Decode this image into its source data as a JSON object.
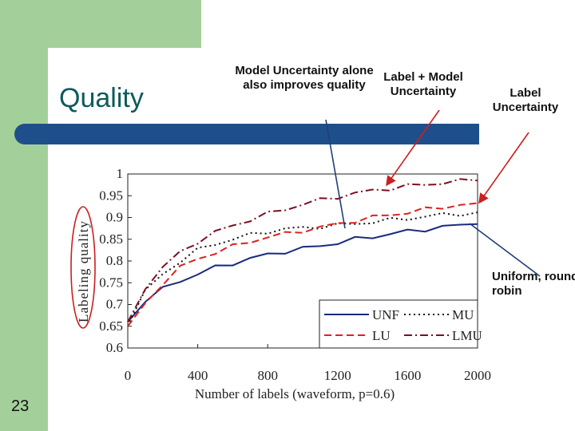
{
  "slide": {
    "title": "Quality",
    "number": "23"
  },
  "callouts": {
    "mu": "Model Uncertainty alone also improves quality",
    "lmu": "Label + Model Uncertainty",
    "lu": "Label Uncertainty",
    "unf": "Uniform, round robin"
  },
  "colors": {
    "slide_green": "#a3d09a",
    "title_bar": "#1f4f8a",
    "title_text": "#0d5a5a",
    "arrow_red": "#cc1f1f",
    "arrow_blue": "#1f3f7a",
    "ylabel_circle": "#cc1f1f",
    "series_unf": "#1a2a80",
    "series_mu": "#111111",
    "series_lu": "#e02020",
    "series_lmu": "#7a1020"
  },
  "chart_data": {
    "type": "line",
    "xlabel": "Number of labels (waveform, p=0.6)",
    "ylabel": "Labeling quality",
    "xlim": [
      0,
      2000
    ],
    "ylim": [
      0.6,
      1
    ],
    "xticks": [
      "0",
      "400",
      "800",
      "1200",
      "1600",
      "2000"
    ],
    "yticks": [
      "0.6",
      "0.65",
      "0.7",
      "0.75",
      "0.8",
      "0.85",
      "0.9",
      "0.95",
      "1"
    ],
    "grid": false,
    "legend": "bottom-right",
    "x": [
      0,
      100,
      200,
      300,
      400,
      500,
      600,
      700,
      800,
      900,
      1000,
      1100,
      1200,
      1300,
      1400,
      1500,
      1600,
      1700,
      1800,
      1900,
      2000
    ],
    "series": [
      {
        "name": "UNF",
        "style": "solid",
        "values": [
          0.66,
          0.71,
          0.735,
          0.755,
          0.77,
          0.785,
          0.795,
          0.805,
          0.815,
          0.822,
          0.828,
          0.835,
          0.842,
          0.85,
          0.856,
          0.862,
          0.868,
          0.873,
          0.878,
          0.882,
          0.885
        ]
      },
      {
        "name": "MU",
        "style": "dotted",
        "values": [
          0.65,
          0.73,
          0.77,
          0.8,
          0.825,
          0.84,
          0.85,
          0.86,
          0.868,
          0.873,
          0.876,
          0.879,
          0.882,
          0.886,
          0.89,
          0.894,
          0.898,
          0.902,
          0.906,
          0.909,
          0.912
        ]
      },
      {
        "name": "LU",
        "style": "dashed",
        "values": [
          0.65,
          0.7,
          0.75,
          0.785,
          0.805,
          0.82,
          0.833,
          0.845,
          0.855,
          0.862,
          0.87,
          0.877,
          0.885,
          0.893,
          0.9,
          0.906,
          0.912,
          0.918,
          0.924,
          0.929,
          0.933
        ]
      },
      {
        "name": "LMU",
        "style": "dashdot",
        "values": [
          0.66,
          0.74,
          0.785,
          0.82,
          0.845,
          0.865,
          0.882,
          0.895,
          0.908,
          0.92,
          0.93,
          0.94,
          0.948,
          0.955,
          0.962,
          0.967,
          0.972,
          0.976,
          0.98,
          0.983,
          0.985
        ]
      }
    ]
  }
}
